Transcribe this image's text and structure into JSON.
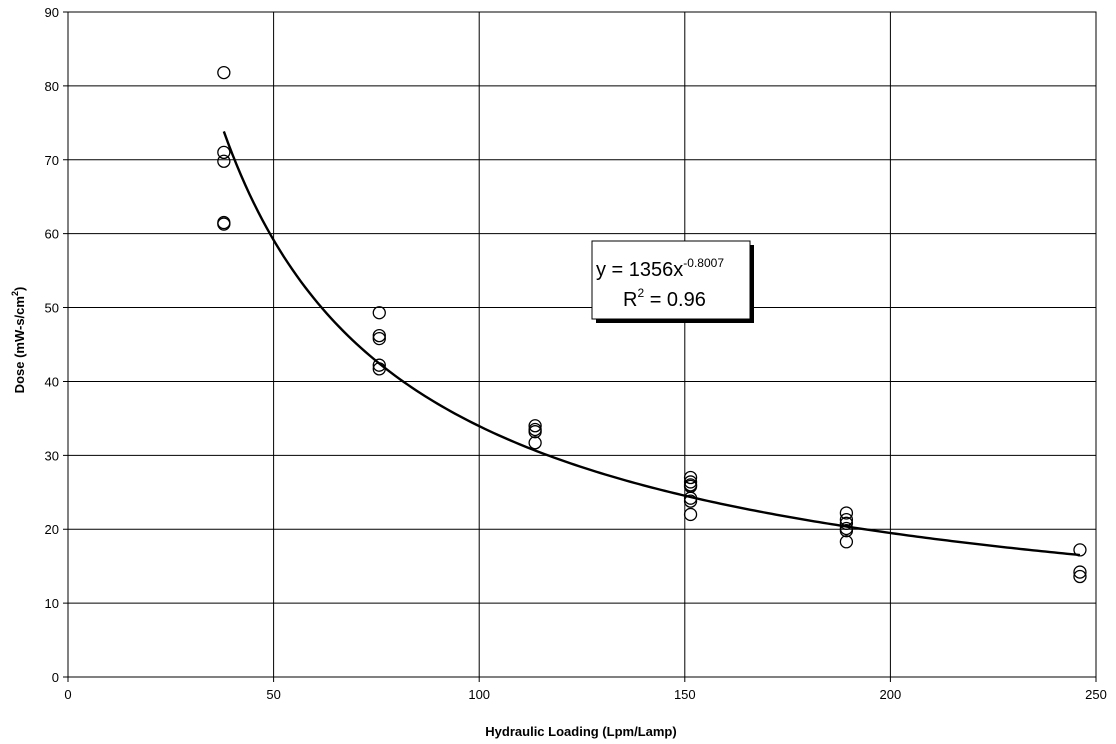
{
  "chart_data": {
    "type": "scatter",
    "xlabel": "Hydraulic Loading (Lpm/Lamp)",
    "ylabel_main": "Dose (mW-s/cm",
    "ylabel_sup": "2",
    "ylabel_tail": ")",
    "xlim": [
      0,
      250
    ],
    "ylim": [
      0,
      90
    ],
    "xticks": [
      0,
      50,
      100,
      150,
      200,
      250
    ],
    "yticks": [
      0,
      10,
      20,
      30,
      40,
      50,
      60,
      70,
      80,
      90
    ],
    "grid": true,
    "series": [
      {
        "marker": "open-circle",
        "x": [
          37.9,
          37.9,
          37.9,
          37.9,
          37.9,
          75.7,
          75.7,
          75.7,
          75.7,
          75.7,
          113.6,
          113.6,
          113.6,
          113.6,
          151.4,
          151.4,
          151.4,
          151.4,
          151.4,
          151.4,
          151.4,
          189.3,
          189.3,
          189.3,
          189.3,
          189.3,
          189.3,
          246.1,
          246.1,
          246.1
        ],
        "y": [
          81.8,
          71.0,
          69.8,
          61.5,
          61.3,
          49.3,
          46.2,
          45.8,
          42.2,
          41.7,
          34.0,
          33.5,
          33.2,
          31.7,
          27.0,
          26.4,
          26.0,
          25.8,
          24.2,
          23.8,
          22.0,
          22.2,
          21.3,
          20.8,
          20.1,
          19.8,
          18.3,
          17.2,
          14.2,
          13.6
        ]
      }
    ],
    "trendline": {
      "type": "power",
      "coefficient": 1356,
      "exponent": -0.8007,
      "x_range": [
        37.9,
        246.1
      ],
      "equation_prefix": "y = 1356x",
      "equation_exponent": "-0.8007",
      "r2_label": "R",
      "r2_sup": "2",
      "r2_value": " = 0.96"
    }
  }
}
